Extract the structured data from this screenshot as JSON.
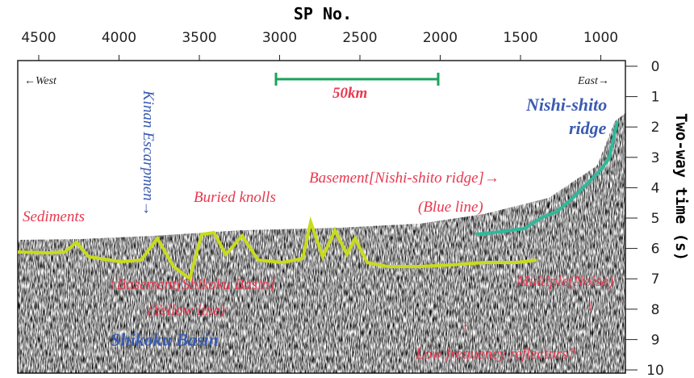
{
  "title": "SP No.",
  "top_axis": {
    "ticks": [
      4500,
      4000,
      3500,
      3000,
      2500,
      2000,
      1500,
      1000
    ]
  },
  "right_axis": {
    "title": "Two-way time (s)",
    "ticks": [
      0,
      1,
      2,
      3,
      4,
      5,
      6,
      7,
      8,
      9,
      10
    ]
  },
  "annotations": {
    "west": "←West",
    "east": "East→",
    "scale": "50km",
    "kinan": "Kinan Escarpmen→",
    "nishi1": "Nishi-shito",
    "nishi2": "ridge",
    "basement_ridge": "Basement[Nishi-shito ridge]→",
    "blue_line": "(Blue line)",
    "buried": "Buried knolls",
    "sediments": "Sediments",
    "basement_basin": "↑Basement[Shikoku Basin]",
    "yellow_line": "(Yellow line)",
    "shikoku": "Shikoku Basin",
    "multiple": "Multiple(Noise)",
    "down_arrow": "↓",
    "up_arrow": "↑",
    "low_freq": "Low frequency reflectors?"
  }
}
